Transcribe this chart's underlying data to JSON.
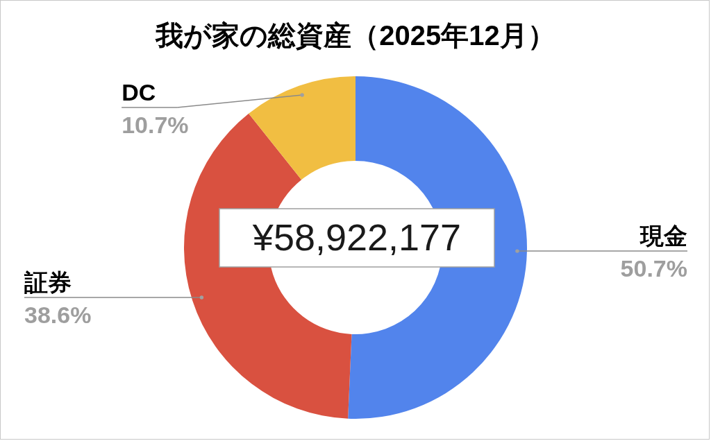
{
  "chart_data": {
    "type": "donut",
    "title": "我が家の総資産（2025年12月）",
    "categories": [
      "現金",
      "証券",
      "DC"
    ],
    "values": [
      50.7,
      38.6,
      10.7
    ],
    "colors": [
      "#5284ec",
      "#d95140",
      "#f1be42"
    ],
    "value_labels": [
      "50.7%",
      "38.6%",
      "10.7%"
    ],
    "annotations": [
      "¥58,922,177"
    ]
  }
}
